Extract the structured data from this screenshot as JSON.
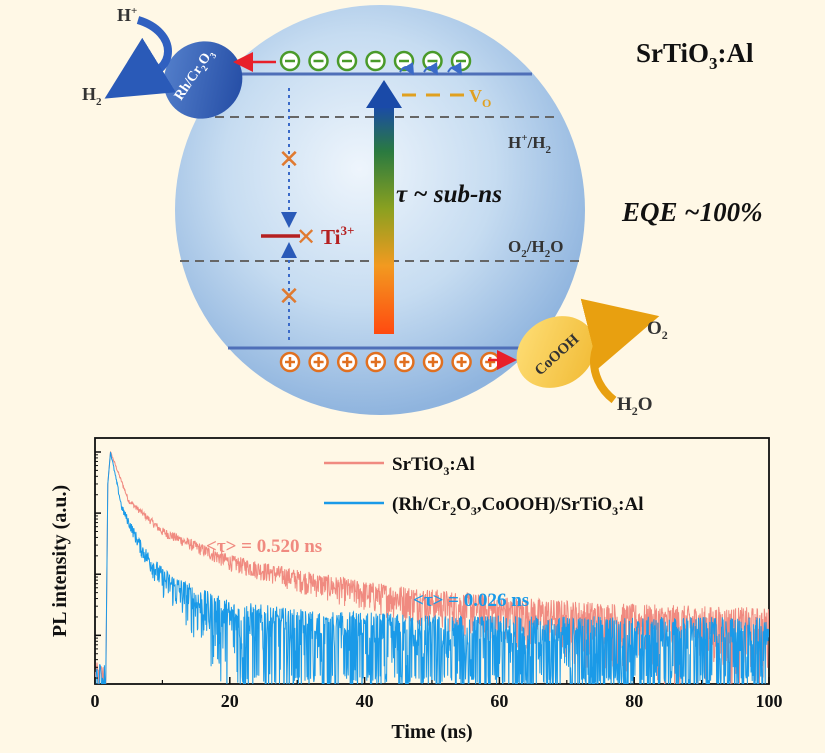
{
  "diagram": {
    "material": {
      "base": "SrTiO",
      "sub": "3",
      "suffix": ":Al"
    },
    "h_plus": {
      "base": "H",
      "sup": "+"
    },
    "h2": {
      "base": "H",
      "sub": "2"
    },
    "rh_cr2o3": {
      "a": "Rh/Cr",
      "b": "2",
      "c": "O",
      "d": "3"
    },
    "cooh": "CoOOH",
    "o2": {
      "base": "O",
      "sub": "2"
    },
    "h2o": {
      "base": "H",
      "sub": "2",
      "suffix": "O"
    },
    "vo": {
      "base": "V",
      "sub": "O"
    },
    "h_h2": {
      "a": "H",
      "b": "+",
      "c": "/H",
      "d": "2"
    },
    "o2_h2o": {
      "a": "O",
      "b": "2",
      "c": "/H",
      "d": "2",
      "e": "O"
    },
    "ti3": {
      "base": "Ti",
      "sup": "3+"
    },
    "tau": "τ ~ sub-ns",
    "eqe": "EQE ~100%",
    "electron_symbol": "⊖",
    "hole_symbol": "⊕",
    "electron_count": 7,
    "hole_count": 8,
    "colors": {
      "sphere": "#a9c9ea",
      "band": "#4f6fb8",
      "electron": "#4a9a2a",
      "hole": "#e07020",
      "cross": "#e07a30",
      "ti": "#b52020",
      "vo": "#e0a020"
    }
  },
  "chart_data": {
    "type": "line",
    "title": "",
    "xlabel": "Time (ns)",
    "ylabel": "PL intensity (a.u.)",
    "xlim": [
      0,
      100
    ],
    "x_ticks": [
      0,
      20,
      40,
      60,
      80,
      100
    ],
    "y_scale": "log",
    "y_decades": 4,
    "legend_position": "top-right",
    "series": [
      {
        "name": {
          "a": "SrTiO",
          "b": "3",
          "c": ":Al"
        },
        "color": "#f08a80",
        "peak_time_ns": 2.3,
        "tau_ns": 0.52,
        "annotation": "<τ> = 0.520 ns",
        "decay": [
          [
            2.3,
            1.0
          ],
          [
            5,
            0.16
          ],
          [
            10,
            0.05
          ],
          [
            20,
            0.016
          ],
          [
            30,
            0.0085
          ],
          [
            40,
            0.005
          ],
          [
            60,
            0.0025
          ],
          [
            80,
            0.0017
          ],
          [
            100,
            0.0014
          ]
        ]
      },
      {
        "name": {
          "a": "(Rh/Cr",
          "b": "2",
          "c": "O",
          "d": "3",
          "e": ",CoOOH)/SrTiO",
          "f": "3",
          "g": ":Al"
        },
        "color": "#1a9ae8",
        "peak_time_ns": 2.3,
        "tau_ns": 0.026,
        "annotation": "<τ> = 0.026 ns",
        "decay": [
          [
            2.3,
            1.0
          ],
          [
            4,
            0.12
          ],
          [
            7,
            0.025
          ],
          [
            10,
            0.0085
          ],
          [
            15,
            0.0035
          ],
          [
            20,
            0.0018
          ],
          [
            30,
            0.0011
          ],
          [
            50,
            0.0008
          ],
          [
            100,
            0.0007
          ]
        ]
      }
    ]
  }
}
